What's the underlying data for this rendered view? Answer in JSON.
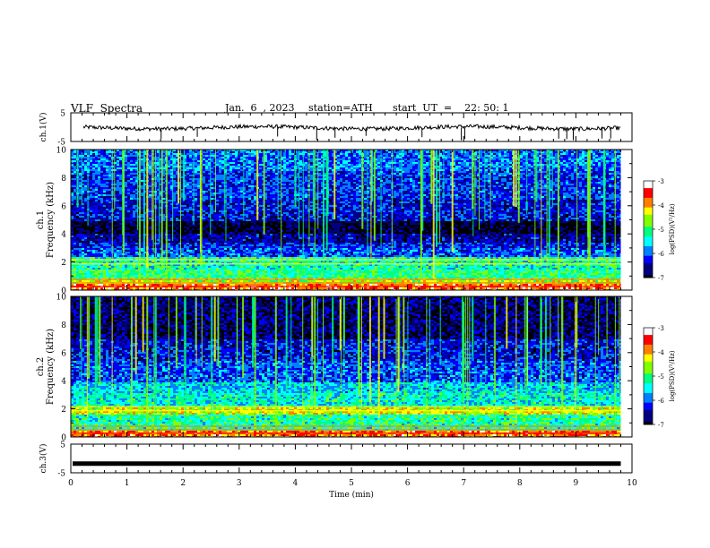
{
  "header": {
    "title": "VLF  Spectra",
    "date": "Jan.  6  , 2023",
    "station": "station=ATH",
    "start": "start  UT  =    22: 50: 1"
  },
  "chart_data": [
    {
      "type": "line",
      "name": "ch1-waveform",
      "ylabel": "ch.1(V)",
      "ylim": [
        -5,
        5
      ],
      "yticks": [
        "5",
        "-5"
      ],
      "xlim": [
        0,
        10
      ],
      "note_values_estimated": true,
      "baseline": -0.2
    },
    {
      "type": "heatmap",
      "name": "ch1-spectrogram",
      "ylabel": "ch.1\nFrequency  (kHz)",
      "ylim": [
        0,
        10
      ],
      "yticks": [
        "0",
        "2",
        "4",
        "6",
        "8",
        "10"
      ],
      "xlim": [
        0,
        9.8
      ],
      "colorbar": {
        "label": "log(PSD)(V²/Hz)",
        "ticks": [
          "-3",
          "-4",
          "-5",
          "-6",
          "-7"
        ],
        "range": [
          -7,
          -3
        ]
      },
      "bands": [
        {
          "from": 0.0,
          "to": 0.5,
          "level": -3.6
        },
        {
          "from": 0.5,
          "to": 0.9,
          "level": -4.4
        },
        {
          "from": 0.9,
          "to": 1.5,
          "level": -5.0
        },
        {
          "from": 1.5,
          "to": 2.4,
          "level": -5.2
        },
        {
          "from": 2.4,
          "to": 3.0,
          "level": -6.0
        },
        {
          "from": 3.0,
          "to": 3.5,
          "level": -6.2
        },
        {
          "from": 3.5,
          "to": 4.1,
          "level": -6.5
        },
        {
          "from": 4.1,
          "to": 5.0,
          "level": -6.9
        },
        {
          "from": 5.0,
          "to": 6.5,
          "level": -6.3
        },
        {
          "from": 6.5,
          "to": 8.5,
          "level": -6.1
        },
        {
          "from": 8.5,
          "to": 10.0,
          "level": -5.9
        }
      ]
    },
    {
      "type": "heatmap",
      "name": "ch2-spectrogram",
      "ylabel": "ch.2\nFrequency  (kHz)",
      "ylim": [
        0,
        10
      ],
      "yticks": [
        "0",
        "2",
        "4",
        "6",
        "8",
        "10"
      ],
      "xlim": [
        0,
        9.8
      ],
      "colorbar": {
        "label": "log(PSD)(V²/Hz)",
        "ticks": [
          "-3",
          "-4",
          "-5",
          "-6",
          "-7"
        ],
        "range": [
          -7,
          -3
        ]
      },
      "bands": [
        {
          "from": 0.0,
          "to": 0.5,
          "level": -3.7
        },
        {
          "from": 0.5,
          "to": 1.6,
          "level": -5.1
        },
        {
          "from": 1.6,
          "to": 2.2,
          "level": -4.3
        },
        {
          "from": 2.2,
          "to": 3.2,
          "level": -5.3
        },
        {
          "from": 3.2,
          "to": 4.0,
          "level": -5.5
        },
        {
          "from": 4.0,
          "to": 5.5,
          "level": -6.0
        },
        {
          "from": 5.5,
          "to": 7.0,
          "level": -6.3
        },
        {
          "from": 7.0,
          "to": 10.0,
          "level": -6.7
        }
      ]
    },
    {
      "type": "line",
      "name": "ch3-waveform",
      "ylabel": "ch.3(V)",
      "ylim": [
        -5,
        5
      ],
      "yticks": [
        "5",
        "-5"
      ],
      "xlim": [
        0,
        10
      ],
      "note_values_estimated": true,
      "baseline": -1.8
    }
  ],
  "time_axis": {
    "label": "Time  (min)",
    "ticks": [
      "0",
      "1",
      "2",
      "3",
      "4",
      "5",
      "6",
      "7",
      "8",
      "9",
      "10"
    ],
    "range": [
      0,
      10
    ]
  },
  "colors": {
    "colormap": [
      "#000000",
      "#00007f",
      "#0000ff",
      "#0080ff",
      "#00ffff",
      "#00ff80",
      "#80ff00",
      "#ffff00",
      "#ff8000",
      "#ff0000",
      "#ffffff"
    ]
  }
}
